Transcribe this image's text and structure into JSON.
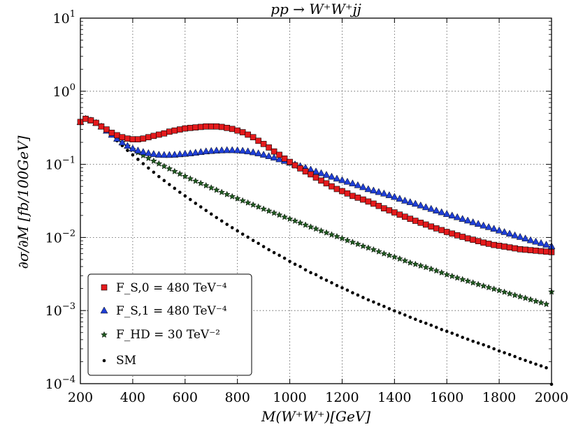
{
  "chart_data": {
    "type": "scatter",
    "title": "pp → W⁺W⁺jj",
    "xlabel": "M(W⁺W⁺)[GeV]",
    "ylabel": "∂σ/∂M [fb/100GeV]",
    "xlim": [
      200,
      2000
    ],
    "ylim": [
      0.0001,
      10
    ],
    "yscale": "log",
    "grid": true,
    "legend_position": "lower-left",
    "x_ticks": [
      "200",
      "400",
      "600",
      "800",
      "1000",
      "1200",
      "1400",
      "1600",
      "1800",
      "2000"
    ],
    "y_ticks": [
      {
        "base": "10",
        "exp": "1"
      },
      {
        "base": "10",
        "exp": "0"
      },
      {
        "base": "10",
        "exp": "−1"
      },
      {
        "base": "10",
        "exp": "−2"
      },
      {
        "base": "10",
        "exp": "−3"
      },
      {
        "base": "10",
        "exp": "−4"
      }
    ],
    "x": [
      200,
      220,
      240,
      260,
      280,
      300,
      320,
      340,
      360,
      380,
      400,
      420,
      440,
      460,
      480,
      500,
      520,
      540,
      560,
      580,
      600,
      620,
      640,
      660,
      680,
      700,
      720,
      740,
      760,
      780,
      800,
      820,
      840,
      860,
      880,
      900,
      920,
      940,
      960,
      980,
      1000,
      1020,
      1040,
      1060,
      1080,
      1100,
      1120,
      1140,
      1160,
      1180,
      1200,
      1220,
      1240,
      1260,
      1280,
      1300,
      1320,
      1340,
      1360,
      1380,
      1400,
      1420,
      1440,
      1460,
      1480,
      1500,
      1520,
      1540,
      1560,
      1580,
      1600,
      1620,
      1640,
      1660,
      1680,
      1700,
      1720,
      1740,
      1760,
      1780,
      1800,
      1820,
      1840,
      1860,
      1880,
      1900,
      1920,
      1940,
      1960,
      1980,
      2000
    ],
    "series": [
      {
        "name": "F_S,0 = 480 TeV⁻⁴",
        "marker": "square",
        "color": "#e41a1c",
        "values": [
          0.38,
          0.42,
          0.4,
          0.37,
          0.33,
          0.3,
          0.27,
          0.25,
          0.235,
          0.225,
          0.22,
          0.22,
          0.225,
          0.235,
          0.245,
          0.255,
          0.265,
          0.28,
          0.29,
          0.3,
          0.31,
          0.315,
          0.32,
          0.325,
          0.33,
          0.33,
          0.33,
          0.325,
          0.315,
          0.305,
          0.29,
          0.275,
          0.255,
          0.235,
          0.21,
          0.19,
          0.17,
          0.15,
          0.135,
          0.12,
          0.108,
          0.097,
          0.088,
          0.08,
          0.073,
          0.066,
          0.06,
          0.055,
          0.05,
          0.046,
          0.043,
          0.04,
          0.037,
          0.035,
          0.033,
          0.031,
          0.029,
          0.027,
          0.025,
          0.0235,
          0.022,
          0.0205,
          0.0192,
          0.018,
          0.0169,
          0.0159,
          0.015,
          0.0141,
          0.0133,
          0.0126,
          0.0119,
          0.0113,
          0.0107,
          0.0102,
          0.0097,
          0.0093,
          0.0089,
          0.0085,
          0.0082,
          0.0079,
          0.0077,
          0.0075,
          0.0073,
          0.0071,
          0.0069,
          0.0068,
          0.0067,
          0.0066,
          0.0065,
          0.0064,
          0.0063
        ]
      },
      {
        "name": "F_S,1 = 480 TeV⁻⁴",
        "marker": "triangle",
        "color": "#1f3fd6",
        "values": [
          0.38,
          0.42,
          0.4,
          0.37,
          0.33,
          0.29,
          0.255,
          0.225,
          0.2,
          0.18,
          0.165,
          0.155,
          0.148,
          0.143,
          0.139,
          0.136,
          0.135,
          0.135,
          0.136,
          0.138,
          0.14,
          0.142,
          0.145,
          0.148,
          0.151,
          0.153,
          0.155,
          0.156,
          0.157,
          0.157,
          0.156,
          0.154,
          0.151,
          0.147,
          0.142,
          0.136,
          0.13,
          0.124,
          0.118,
          0.112,
          0.106,
          0.1,
          0.095,
          0.09,
          0.085,
          0.08,
          0.076,
          0.072,
          0.068,
          0.064,
          0.061,
          0.058,
          0.055,
          0.052,
          0.049,
          0.046,
          0.044,
          0.042,
          0.04,
          0.038,
          0.036,
          0.034,
          0.032,
          0.0305,
          0.029,
          0.0275,
          0.026,
          0.0247,
          0.0234,
          0.0222,
          0.021,
          0.02,
          0.019,
          0.018,
          0.0171,
          0.0162,
          0.0154,
          0.0146,
          0.0139,
          0.0132,
          0.0125,
          0.0119,
          0.0113,
          0.0107,
          0.0102,
          0.0097,
          0.0092,
          0.0088,
          0.0084,
          0.008,
          0.0076
        ]
      },
      {
        "name": "F_HD = 30 TeV⁻²",
        "marker": "star",
        "color": "#1f5a1f",
        "values": [
          0.38,
          0.42,
          0.4,
          0.37,
          0.33,
          0.29,
          0.255,
          0.225,
          0.2,
          0.178,
          0.16,
          0.145,
          0.132,
          0.121,
          0.111,
          0.102,
          0.094,
          0.087,
          0.08,
          0.074,
          0.0685,
          0.0635,
          0.059,
          0.055,
          0.0512,
          0.0477,
          0.0445,
          0.0415,
          0.0388,
          0.0363,
          0.034,
          0.0318,
          0.0298,
          0.0279,
          0.0262,
          0.0245,
          0.023,
          0.0216,
          0.0203,
          0.019,
          0.0179,
          0.0168,
          0.0158,
          0.0148,
          0.0139,
          0.0131,
          0.0123,
          0.0116,
          0.0109,
          0.0103,
          0.0097,
          0.0091,
          0.0086,
          0.0081,
          0.0076,
          0.0072,
          0.0068,
          0.0064,
          0.006,
          0.0057,
          0.0054,
          0.0051,
          0.0048,
          0.0045,
          0.0043,
          0.0041,
          0.0039,
          0.0037,
          0.0035,
          0.0033,
          0.0031,
          0.00295,
          0.0028,
          0.00266,
          0.00253,
          0.0024,
          0.00228,
          0.00217,
          0.00207,
          0.00197,
          0.00188,
          0.00179,
          0.0017,
          0.00162,
          0.00155,
          0.00148,
          0.00141,
          0.00134,
          0.00128,
          0.00122,
          0.0018
        ]
      },
      {
        "name": "SM",
        "marker": "dot",
        "color": "#000000",
        "values": [
          0.38,
          0.42,
          0.4,
          0.37,
          0.33,
          0.285,
          0.245,
          0.21,
          0.18,
          0.155,
          0.135,
          0.117,
          0.102,
          0.089,
          0.078,
          0.068,
          0.06,
          0.053,
          0.047,
          0.0415,
          0.037,
          0.033,
          0.0293,
          0.0262,
          0.0234,
          0.0209,
          0.0187,
          0.0168,
          0.0151,
          0.0136,
          0.0123,
          0.0111,
          0.0101,
          0.0091,
          0.0083,
          0.0075,
          0.0068,
          0.0062,
          0.0057,
          0.0052,
          0.0047,
          0.0043,
          0.004,
          0.0036,
          0.0033,
          0.0031,
          0.0028,
          0.0026,
          0.0024,
          0.0022,
          0.00205,
          0.0019,
          0.00175,
          0.00163,
          0.00151,
          0.0014,
          0.00131,
          0.00122,
          0.00114,
          0.00106,
          0.00099,
          0.00093,
          0.00087,
          0.00081,
          0.00076,
          0.00071,
          0.00067,
          0.00063,
          0.00059,
          0.00055,
          0.00052,
          0.00049,
          0.00046,
          0.00043,
          0.000405,
          0.00038,
          0.00036,
          0.00034,
          0.00032,
          0.0003,
          0.00028,
          0.000265,
          0.00025,
          0.000235,
          0.00022,
          0.000208,
          0.000196,
          0.000185,
          0.000175,
          0.000165,
          9.8e-05
        ]
      }
    ],
    "legend": [
      {
        "label": "F_S,0 = 480 TeV⁻⁴"
      },
      {
        "label": "F_S,1 = 480 TeV⁻⁴"
      },
      {
        "label": "F_HD = 30 TeV⁻²"
      },
      {
        "label": "SM"
      }
    ]
  }
}
